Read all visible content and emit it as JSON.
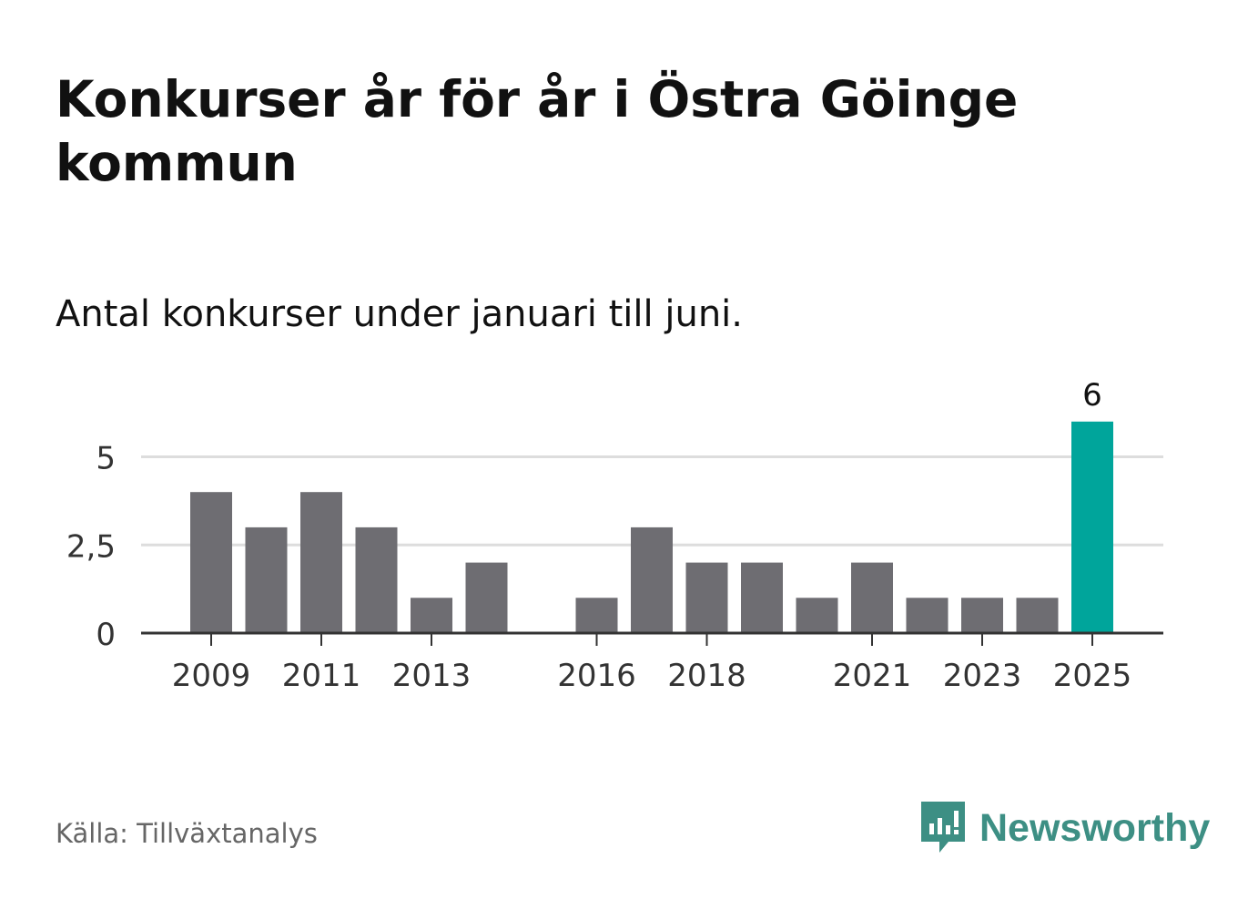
{
  "title": "Konkurser år för år i Östra Göinge kommun",
  "subtitle": "Antal konkurser under januari till juni.",
  "source": "Källa: Tillväxtanalys",
  "brand": {
    "name": "Newsworthy",
    "icon": "newsworthy-logo-icon",
    "color": "#3d8f84"
  },
  "chart_data": {
    "type": "bar",
    "categories": [
      "2009",
      "2010",
      "2011",
      "2012",
      "2013",
      "2014",
      "2015",
      "2016",
      "2017",
      "2018",
      "2019",
      "2020",
      "2021",
      "2022",
      "2023",
      "2024",
      "2025"
    ],
    "values": [
      4,
      3,
      4,
      3,
      1,
      2,
      0,
      1,
      3,
      2,
      2,
      1,
      2,
      1,
      1,
      1,
      6
    ],
    "x_tick_labels": [
      "2009",
      "2011",
      "2013",
      "2016",
      "2018",
      "2021",
      "2023",
      "2025"
    ],
    "y_ticks": [
      0,
      2.5,
      5
    ],
    "y_tick_labels": [
      "0",
      "2,5",
      "5"
    ],
    "ylim": [
      0,
      6
    ],
    "grid": true,
    "highlight": {
      "category": "2025",
      "value_label": "6"
    },
    "colors": {
      "bar": "#6e6d72",
      "highlight": "#00a59b",
      "grid": "#dddddd",
      "axis": "#333333"
    }
  }
}
